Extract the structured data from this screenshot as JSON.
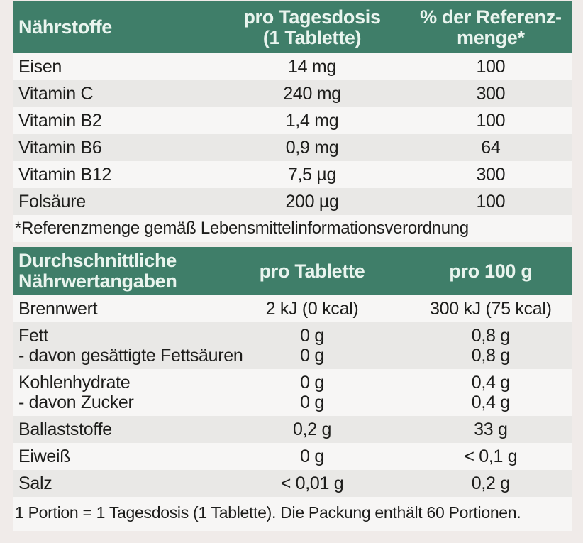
{
  "colors": {
    "header_bg": "#3F7E69",
    "header_text": "#E9F4EE",
    "row_light": "#F7F6F5",
    "row_dark": "#E9E8E6",
    "page_bg": "#F0EBE9",
    "text": "#1D1D1B"
  },
  "nutrients_table": {
    "header": {
      "col1": "Nährstoffe",
      "col2": "pro Tagesdosis\n(1 Tablette)",
      "col3": "% der Referenz-\nmenge*"
    },
    "rows": [
      {
        "label": "Eisen",
        "per_dose": "14 mg",
        "percent_ref": "100"
      },
      {
        "label": "Vitamin C",
        "per_dose": "240 mg",
        "percent_ref": "300"
      },
      {
        "label": "Vitamin B2",
        "per_dose": "1,4 mg",
        "percent_ref": "100"
      },
      {
        "label": "Vitamin B6",
        "per_dose": "0,9 mg",
        "percent_ref": "64"
      },
      {
        "label": "Vitamin B12",
        "per_dose": "7,5 µg",
        "percent_ref": "300"
      },
      {
        "label": "Folsäure",
        "per_dose": "200 µg",
        "percent_ref": "100"
      }
    ],
    "footnote": "*Referenzmenge gemäß Lebensmittelinformationsverordnung"
  },
  "nutrition_table": {
    "header": {
      "col1": "Durchschnittliche\nNährwertangaben",
      "col2": "pro Tablette",
      "col3": "pro 100 g"
    },
    "rows": [
      {
        "label": "Brennwert",
        "per_tablet": "2 kJ (0 kcal)",
        "per_100g": "300 kJ (75 kcal)"
      },
      {
        "label": "Fett",
        "per_tablet": "0 g",
        "per_100g": "0,8 g"
      },
      {
        "label": "- davon gesättigte Fettsäuren",
        "per_tablet": "0 g",
        "per_100g": "0,8 g"
      },
      {
        "label": "Kohlenhydrate",
        "per_tablet": "0 g",
        "per_100g": "0,4 g"
      },
      {
        "label": "- davon Zucker",
        "per_tablet": "0 g",
        "per_100g": "0,4 g"
      },
      {
        "label": "Ballaststoffe",
        "per_tablet": "0,2 g",
        "per_100g": "33 g"
      },
      {
        "label": "Eiweiß",
        "per_tablet": "0 g",
        "per_100g": "< 0,1 g"
      },
      {
        "label": "Salz",
        "per_tablet": "< 0,01 g",
        "per_100g": "0,2 g"
      }
    ],
    "footer": "1 Portion = 1 Tagesdosis (1 Tablette). Die Packung enthält 60 Portionen."
  }
}
